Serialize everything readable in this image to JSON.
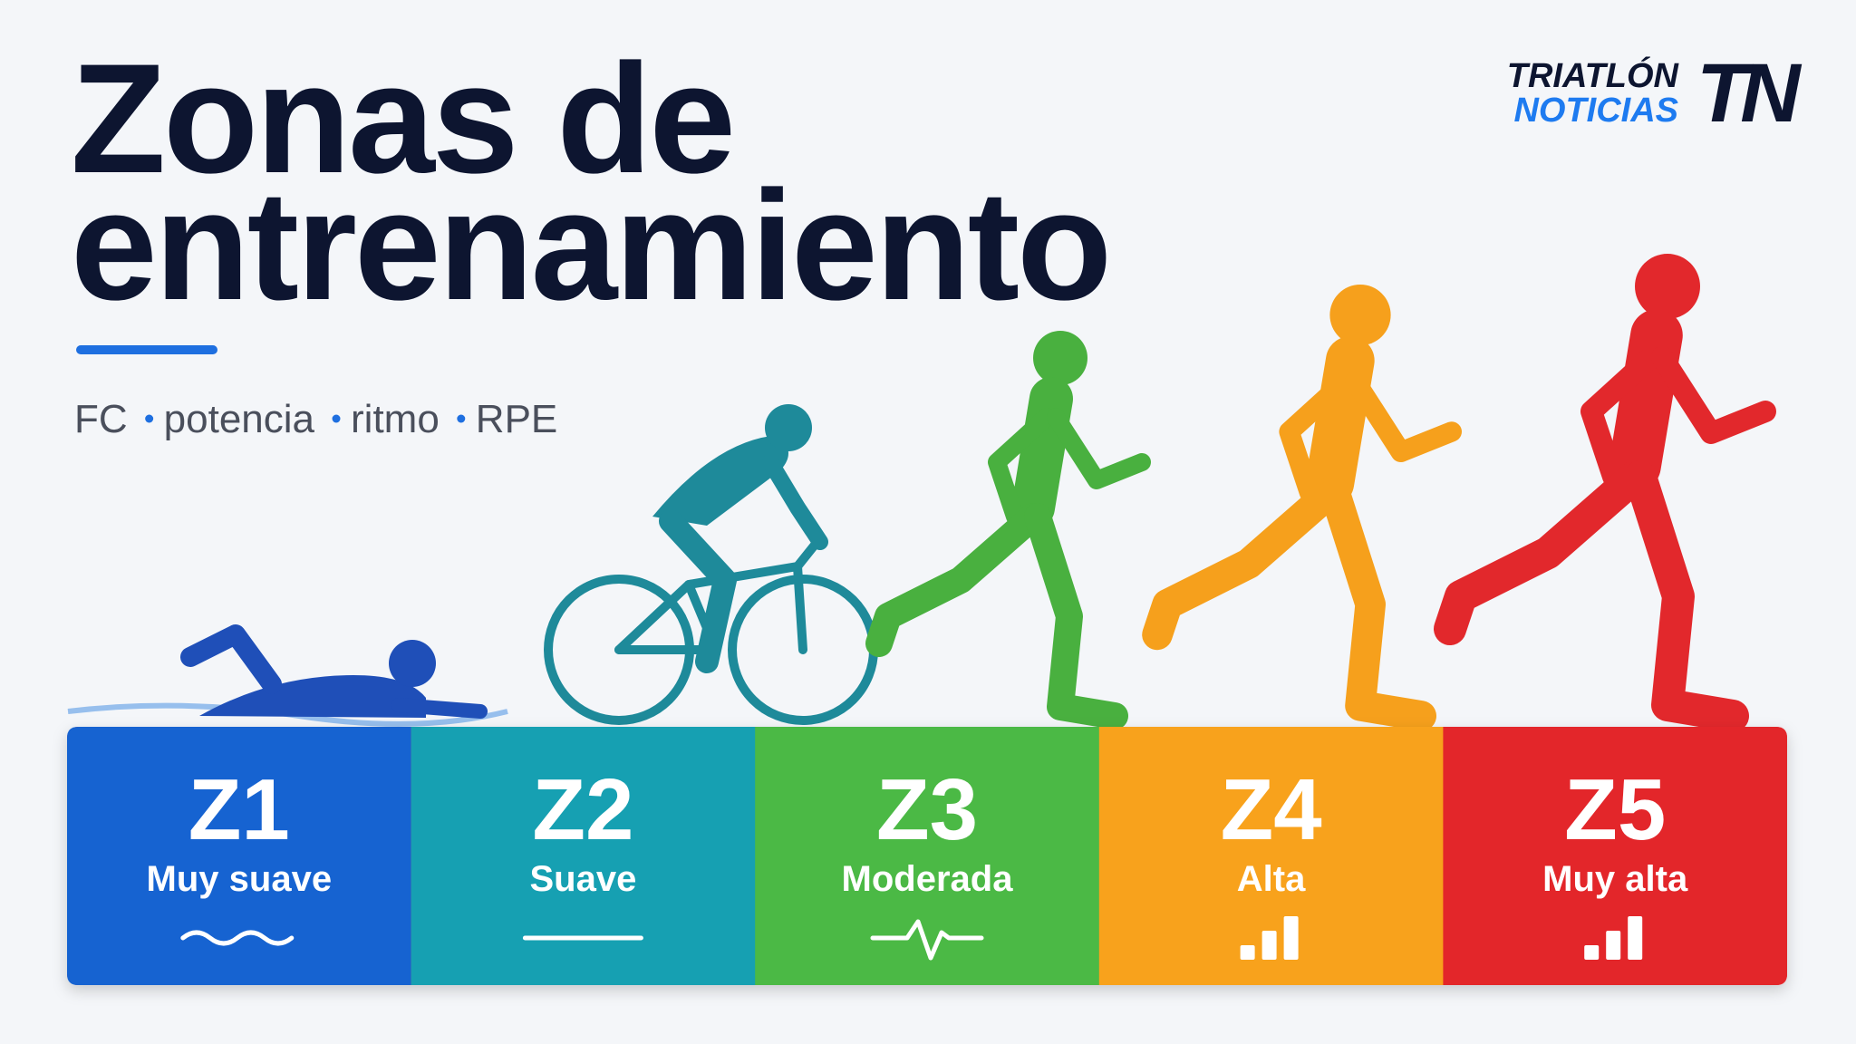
{
  "header": {
    "title_lines": [
      "Zonas de",
      "entrenamiento"
    ],
    "subtitle_items": [
      "FC",
      "potencia",
      "ritmo",
      "RPE"
    ]
  },
  "logo": {
    "line1": "TRIATLÓN",
    "line2": "NOTICIAS",
    "mark": "TN"
  },
  "zones": [
    {
      "code": "Z1",
      "label": "Muy suave"
    },
    {
      "code": "Z2",
      "label": "Suave"
    },
    {
      "code": "Z3",
      "label": "Moderada"
    },
    {
      "code": "Z4",
      "label": "Alta"
    },
    {
      "code": "Z5",
      "label": "Muy alta"
    }
  ]
}
